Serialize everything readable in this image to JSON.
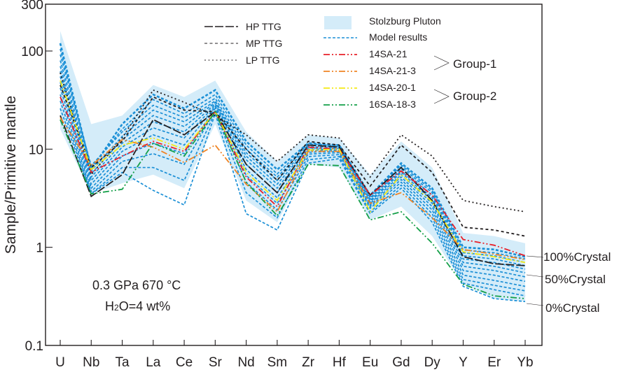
{
  "chart_data": {
    "type": "line",
    "title": "",
    "xlabel": "",
    "ylabel": "Sample/Primitive mantle",
    "yscale": "log",
    "ylim": [
      0.1,
      300
    ],
    "yticks": [
      0.1,
      1,
      10,
      100,
      300
    ],
    "ytick_labels": [
      "0.1",
      "1",
      "10",
      "100",
      "300"
    ],
    "categories": [
      "U",
      "Nb",
      "Ta",
      "La",
      "Ce",
      "Sr",
      "Nd",
      "Sm",
      "Zr",
      "Hf",
      "Eu",
      "Gd",
      "Dy",
      "Y",
      "Er",
      "Yb"
    ],
    "grid": false,
    "legend_position": "top-center",
    "annotations": {
      "conditions_line1": "0.3 GPa 670 °C",
      "conditions_line2_pre": "H",
      "conditions_line2_sub": "2",
      "conditions_line2_post": "O=4 wt%",
      "group1": "Group-1",
      "group2": "Group-2",
      "crystal_100": "100%Crystal",
      "crystal_50": "50%Crystal",
      "crystal_0": "0%Crystal"
    },
    "legend": [
      {
        "name": "HP TTG",
        "style": "longdash",
        "color": "#231f20"
      },
      {
        "name": "MP TTG",
        "style": "dash",
        "color": "#231f20"
      },
      {
        "name": "LP TTG",
        "style": "dot",
        "color": "#231f20"
      },
      {
        "name": "Stolzburg Pluton",
        "style": "fill",
        "color": "#d4ecf9"
      },
      {
        "name": "Model results",
        "style": "dash",
        "color": "#1a8fd6"
      },
      {
        "name": "14SA-21",
        "style": "dashdot",
        "color": "#e8202a"
      },
      {
        "name": "14SA-21-3",
        "style": "dashdot",
        "color": "#ef8424"
      },
      {
        "name": "14SA-20-1",
        "style": "dashdot",
        "color": "#f5ea14"
      },
      {
        "name": "16SA-18-3",
        "style": "dashdot",
        "color": "#16a04a"
      }
    ],
    "envelope": {
      "name": "Stolzburg Pluton",
      "upper": [
        160,
        18,
        22,
        45,
        34,
        50,
        15,
        7.5,
        14,
        13,
        5.5,
        12,
        6.5,
        1.4,
        1.3,
        1.1
      ],
      "lower": [
        16,
        3.5,
        4.5,
        5.5,
        4.0,
        18,
        3.0,
        1.8,
        7,
        6.5,
        1.9,
        2.6,
        1.3,
        0.42,
        0.3,
        0.28
      ]
    },
    "series": [
      {
        "name": "LP TTG",
        "style": "dot",
        "color": "#231f20",
        "values": [
          60,
          5.5,
          13,
          40,
          30,
          22,
          14,
          7.5,
          14,
          13,
          5.2,
          14,
          8.5,
          3.0,
          2.6,
          2.3
        ]
      },
      {
        "name": "HP TTG",
        "style": "longdash",
        "color": "#231f20",
        "values": [
          22,
          3.3,
          5.5,
          20,
          14,
          24,
          7.0,
          3.6,
          11,
          10.5,
          3.4,
          6.5,
          3.0,
          0.8,
          0.68,
          0.65
        ]
      },
      {
        "name": "MP TTG",
        "style": "dash",
        "color": "#231f20",
        "values": [
          45,
          6.5,
          12,
          34,
          25,
          24,
          10,
          4.8,
          12,
          11,
          4.2,
          11,
          5.8,
          1.6,
          1.5,
          1.3
        ]
      },
      {
        "name": "14SA-21",
        "style": "dashdot",
        "color": "#e8202a",
        "values": [
          34,
          5.8,
          8.5,
          12,
          9.5,
          24,
          5.2,
          2.6,
          10.5,
          10,
          3.4,
          6.0,
          3.4,
          1.2,
          1.05,
          0.82
        ]
      },
      {
        "name": "14SA-21-3",
        "style": "dashdot",
        "color": "#ef8424",
        "values": [
          21,
          6.8,
          12.5,
          10.5,
          7.3,
          11,
          4.4,
          2.3,
          9.5,
          9.5,
          2.8,
          3.6,
          2.0,
          0.95,
          0.85,
          0.75
        ]
      },
      {
        "name": "14SA-20-1",
        "style": "dashdot",
        "color": "#f5ea14",
        "values": [
          50,
          6.2,
          11,
          13,
          10,
          24,
          5.8,
          3.0,
          9.8,
          10,
          2.3,
          5.5,
          2.9,
          0.9,
          0.8,
          0.7
        ]
      },
      {
        "name": "16SA-18-3",
        "style": "dashdot",
        "color": "#16a04a",
        "values": [
          20,
          3.5,
          3.9,
          11.5,
          8.5,
          24,
          4.6,
          2.1,
          7.0,
          6.8,
          1.9,
          2.3,
          1.1,
          0.42,
          0.32,
          0.3
        ]
      }
    ],
    "model_results": {
      "name": "Model results",
      "color": "#1a8fd6",
      "curves": [
        [
          120,
          6.2,
          18,
          36,
          26,
          40,
          12,
          6.2,
          11.5,
          11,
          3.4,
          7.2,
          4.0,
          1.0,
          0.95,
          0.8
        ],
        [
          105,
          6.5,
          16,
          32,
          23,
          36,
          11,
          5.6,
          11.3,
          10.8,
          3.3,
          6.9,
          3.8,
          0.94,
          0.88,
          0.76
        ],
        [
          92,
          6.8,
          15,
          28,
          21,
          33,
          10,
          5.2,
          11,
          10.6,
          3.2,
          6.6,
          3.6,
          0.88,
          0.82,
          0.7
        ],
        [
          80,
          6.0,
          13.5,
          25,
          19,
          31,
          9.2,
          4.8,
          10.6,
          10.4,
          3.1,
          6.3,
          3.4,
          0.82,
          0.76,
          0.65
        ],
        [
          70,
          5.6,
          12.5,
          22,
          17,
          30,
          8.5,
          4.4,
          10.3,
          10.2,
          3.0,
          6.0,
          3.2,
          0.76,
          0.7,
          0.6
        ],
        [
          62,
          5.2,
          11.5,
          19,
          15,
          29,
          7.8,
          4.0,
          10,
          10,
          2.9,
          5.8,
          3.0,
          0.7,
          0.64,
          0.55
        ],
        [
          55,
          4.8,
          10.5,
          16.5,
          13,
          28,
          7.0,
          3.6,
          9.7,
          9.8,
          2.8,
          5.5,
          2.8,
          0.64,
          0.58,
          0.5
        ],
        [
          48,
          4.4,
          9.5,
          14,
          11,
          27,
          6.2,
          3.2,
          9.3,
          9.5,
          2.7,
          5.2,
          2.6,
          0.58,
          0.52,
          0.45
        ],
        [
          42,
          4.0,
          8.5,
          11.5,
          9.0,
          26,
          5.4,
          2.8,
          8.9,
          9.2,
          2.6,
          4.9,
          2.4,
          0.52,
          0.46,
          0.4
        ],
        [
          36,
          3.7,
          7.5,
          9.0,
          7.0,
          25,
          4.6,
          2.4,
          8.4,
          8.8,
          2.5,
          4.6,
          2.2,
          0.47,
          0.41,
          0.36
        ],
        [
          31,
          3.5,
          6.5,
          6.5,
          4.8,
          24,
          3.6,
          2.0,
          7.8,
          8.4,
          2.3,
          4.3,
          2.0,
          0.43,
          0.37,
          0.32
        ],
        [
          26,
          3.5,
          5.8,
          3.8,
          2.7,
          23,
          2.2,
          1.5,
          7.2,
          8.0,
          2.2,
          4.0,
          1.8,
          0.4,
          0.3,
          0.28
        ]
      ]
    }
  }
}
